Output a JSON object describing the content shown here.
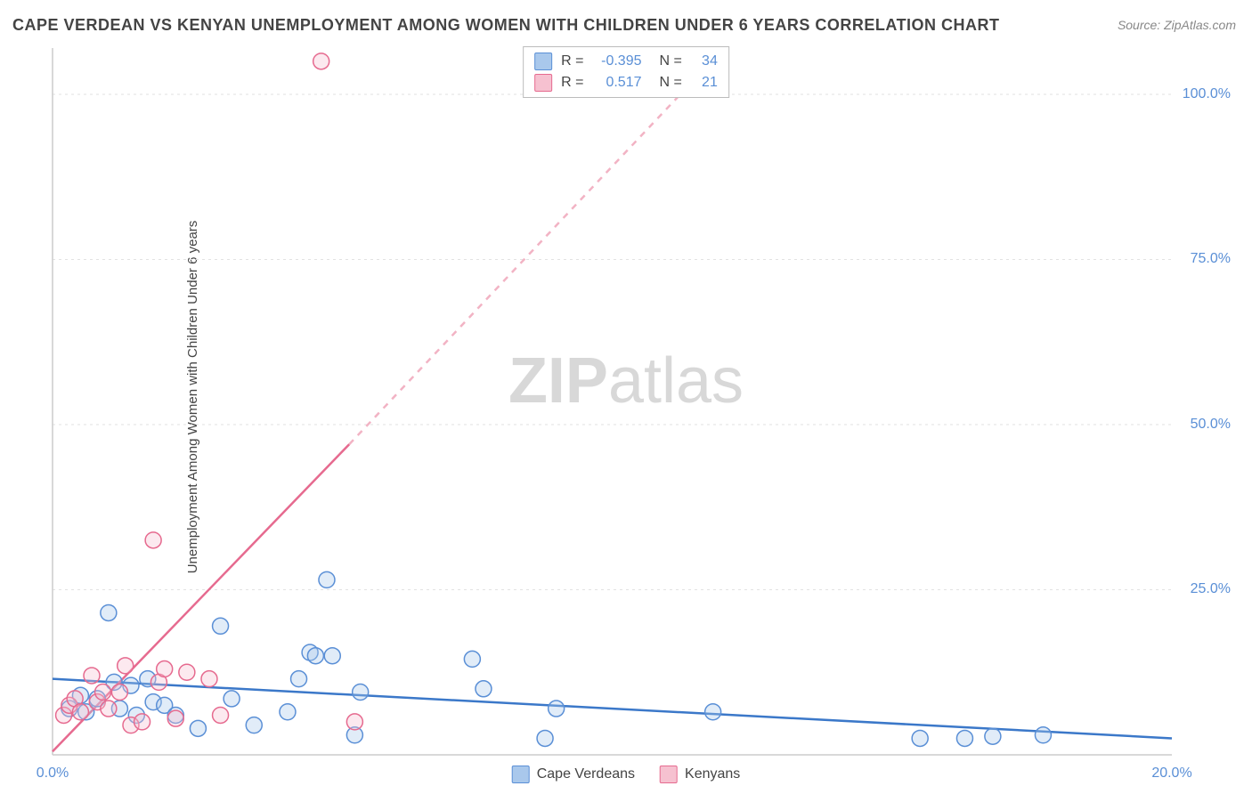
{
  "title": "CAPE VERDEAN VS KENYAN UNEMPLOYMENT AMONG WOMEN WITH CHILDREN UNDER 6 YEARS CORRELATION CHART",
  "source": "Source: ZipAtlas.com",
  "ylabel": "Unemployment Among Women with Children Under 6 years",
  "watermark_bold": "ZIP",
  "watermark_rest": "atlas",
  "chart": {
    "type": "scatter",
    "background_color": "#ffffff",
    "grid_color": "#e2e2e2",
    "axis_color": "#cccccc",
    "label_color": "#5a8fd6",
    "title_color": "#444444",
    "xlim": [
      0,
      20
    ],
    "ylim": [
      0,
      107
    ],
    "x_ticks": [
      0,
      20
    ],
    "x_tick_labels": [
      "0.0%",
      "20.0%"
    ],
    "y_ticks": [
      25,
      50,
      75,
      100
    ],
    "y_tick_labels": [
      "25.0%",
      "50.0%",
      "75.0%",
      "100.0%"
    ],
    "marker_radius": 9,
    "marker_stroke_width": 1.5,
    "marker_fill_opacity": 0.35,
    "trend_line_width": 2.5,
    "title_fontsize": 18,
    "label_fontsize": 15,
    "tick_fontsize": 16,
    "series": [
      {
        "name": "Cape Verdeans",
        "color_fill": "#a9c8ec",
        "color_stroke": "#5a8fd6",
        "R": "-0.395",
        "N": "34",
        "trend": {
          "x1": 0,
          "y1": 11.5,
          "x2": 20,
          "y2": 2.5,
          "dashed": false,
          "color": "#3b78c9"
        },
        "points": [
          [
            0.3,
            7.0
          ],
          [
            0.5,
            9.0
          ],
          [
            0.6,
            6.5
          ],
          [
            0.8,
            8.5
          ],
          [
            1.0,
            21.5
          ],
          [
            1.1,
            11.0
          ],
          [
            1.2,
            7.0
          ],
          [
            1.4,
            10.5
          ],
          [
            1.5,
            6.0
          ],
          [
            1.7,
            11.5
          ],
          [
            1.8,
            8.0
          ],
          [
            2.0,
            7.5
          ],
          [
            2.2,
            6.0
          ],
          [
            2.6,
            4.0
          ],
          [
            3.0,
            19.5
          ],
          [
            3.2,
            8.5
          ],
          [
            3.6,
            4.5
          ],
          [
            4.2,
            6.5
          ],
          [
            4.4,
            11.5
          ],
          [
            4.6,
            15.5
          ],
          [
            4.7,
            15.0
          ],
          [
            4.9,
            26.5
          ],
          [
            5.0,
            15.0
          ],
          [
            5.4,
            3.0
          ],
          [
            5.5,
            9.5
          ],
          [
            7.5,
            14.5
          ],
          [
            7.7,
            10.0
          ],
          [
            8.8,
            2.5
          ],
          [
            9.0,
            7.0
          ],
          [
            11.8,
            6.5
          ],
          [
            15.5,
            2.5
          ],
          [
            16.3,
            2.5
          ],
          [
            16.8,
            2.8
          ],
          [
            17.7,
            3.0
          ]
        ]
      },
      {
        "name": "Kenyans",
        "color_fill": "#f6c1d0",
        "color_stroke": "#e66a8f",
        "R": "0.517",
        "N": "21",
        "trend": {
          "x1": 0,
          "y1": 0.5,
          "x2": 5.3,
          "y2": 47,
          "dashed": false,
          "color": "#e66a8f"
        },
        "trend_extend": {
          "x1": 5.3,
          "y1": 47,
          "x2": 12.0,
          "y2": 107,
          "dashed": true,
          "color": "#f2b3c4"
        },
        "points": [
          [
            0.2,
            6.0
          ],
          [
            0.3,
            7.5
          ],
          [
            0.4,
            8.5
          ],
          [
            0.5,
            6.5
          ],
          [
            0.7,
            12.0
          ],
          [
            0.8,
            8.0
          ],
          [
            0.9,
            9.5
          ],
          [
            1.0,
            7.0
          ],
          [
            1.2,
            9.5
          ],
          [
            1.3,
            13.5
          ],
          [
            1.4,
            4.5
          ],
          [
            1.6,
            5.0
          ],
          [
            1.8,
            32.5
          ],
          [
            1.9,
            11.0
          ],
          [
            2.0,
            13.0
          ],
          [
            2.2,
            5.5
          ],
          [
            2.4,
            12.5
          ],
          [
            2.8,
            11.5
          ],
          [
            3.0,
            6.0
          ],
          [
            4.8,
            105.0
          ],
          [
            5.4,
            5.0
          ]
        ]
      }
    ],
    "legend_bottom": [
      {
        "label": "Cape Verdeans",
        "fill": "#a9c8ec",
        "stroke": "#5a8fd6"
      },
      {
        "label": "Kenyans",
        "fill": "#f6c1d0",
        "stroke": "#e66a8f"
      }
    ]
  }
}
